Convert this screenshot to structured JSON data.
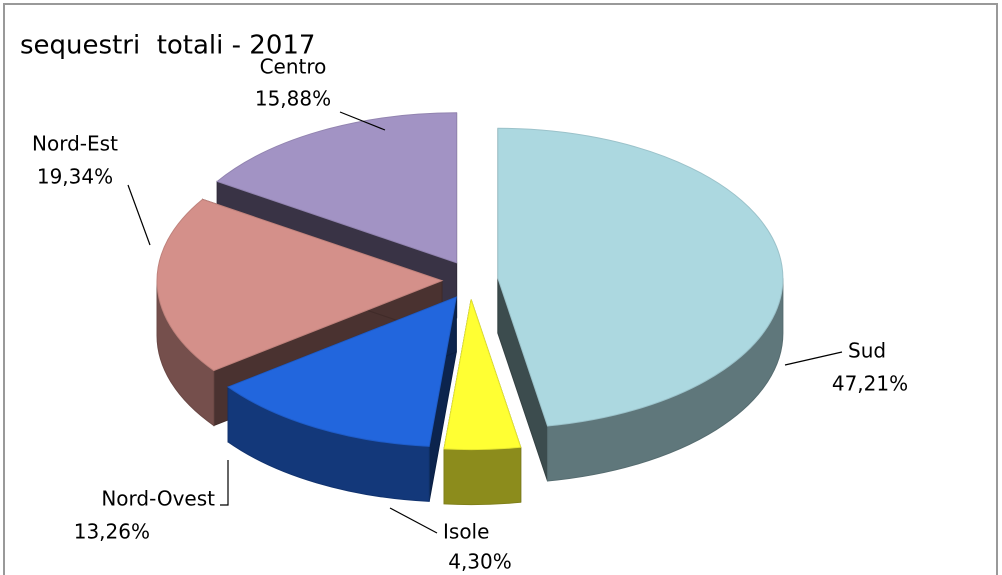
{
  "chart_data": {
    "type": "pie",
    "title": "sequestri  totali - 2017",
    "categories": [
      "Sud",
      "Isole",
      "Nord-Ovest",
      "Nord-Est",
      "Centro"
    ],
    "values": [
      47.21,
      4.3,
      13.26,
      19.34,
      15.88
    ],
    "value_labels": [
      "47,21%",
      "4,30%",
      "13,26%",
      "19,34%",
      "15,88%"
    ],
    "colors": [
      "#acd8e0",
      "#ffff33",
      "#2266dd",
      "#d4908a",
      "#a293c4"
    ]
  }
}
